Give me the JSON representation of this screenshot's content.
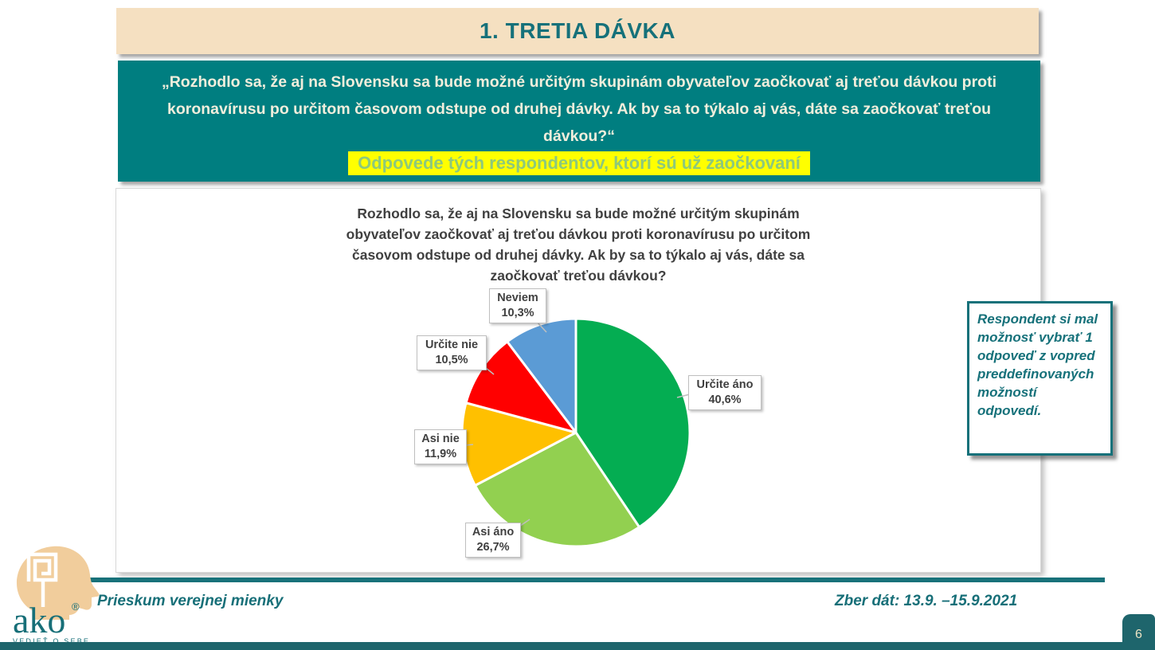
{
  "slide": {
    "title": "1. TRETIA DÁVKA",
    "page_number": "6"
  },
  "question_panel": {
    "question": "„Rozhodlo sa, že aj na Slovensku sa bude možné určitým skupinám obyvateľov zaočkovať aj treťou dávkou proti koronavírusu po určitom časovom odstupe od druhej dávky. Ak by sa to týkalo aj vás, dáte sa zaočkovať treťou dávkou?“",
    "highlight": "Odpovede tých respondentov, ktorí sú už zaočkovaní"
  },
  "chart_data": {
    "type": "pie",
    "title": "Rozhodlo sa, že aj na Slovensku sa bude možné určitým skupinám obyvateľov zaočkovať aj treťou dávkou proti koronavírusu po určitom časovom odstupe od druhej dávky. Ak by sa to týkalo aj vás, dáte sa zaočkovať treťou dávkou?",
    "unit": "%",
    "start_angle_deg": 0,
    "direction": "clockwise",
    "slices": [
      {
        "label": "Určite áno",
        "value": 40.6,
        "display": "40,6%",
        "color": "#04AD52"
      },
      {
        "label": "Asi áno",
        "value": 26.7,
        "display": "26,7%",
        "color": "#92D050"
      },
      {
        "label": "Asi nie",
        "value": 11.9,
        "display": "11,9%",
        "color": "#FFC000"
      },
      {
        "label": "Určite nie",
        "value": 10.5,
        "display": "10,5%",
        "color": "#FF0000"
      },
      {
        "label": "Neviem",
        "value": 10.3,
        "display": "10,3%",
        "color": "#5B9BD5"
      }
    ]
  },
  "note_box": {
    "text": "Respondent si mal možnosť vybrať 1 odpoveď z vopred preddefinovaných možností odpovedí."
  },
  "footer": {
    "left_text": "Prieskum verejnej mienky",
    "right_text": "Zber dát: 13.9. –15.9.2021",
    "logo": {
      "brand": "ako",
      "registered": "®",
      "tagline": "VEDIEŤ O SEBE"
    }
  },
  "colors": {
    "header_bg": "#F5E0C1",
    "teal_panel": "#007E80",
    "teal_text": "#16717A",
    "cream_text": "#F2EEDC",
    "highlight_bg": "#FFFF00",
    "highlight_text": "#8DC97B",
    "chart_text": "#404040",
    "footer_bar": "#1E656C",
    "logo_tan": "#F1CD9C",
    "page_number_text": "#EDE4C4"
  }
}
